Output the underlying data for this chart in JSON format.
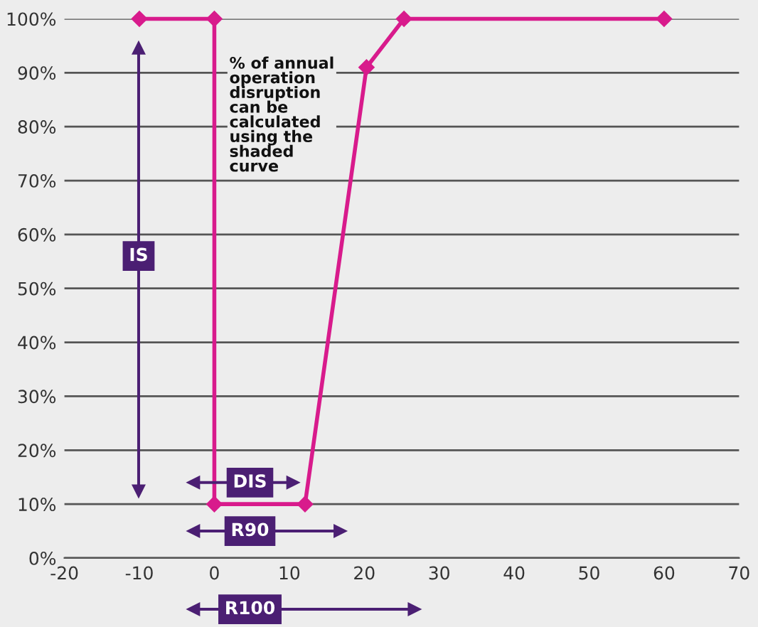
{
  "chart_data": {
    "type": "line",
    "x": [
      -10,
      0,
      0,
      12.1,
      20.3,
      25.3,
      60
    ],
    "series": [
      {
        "color": "#d81b8c",
        "values": [
          100,
          100,
          10,
          10,
          91,
          100,
          100
        ]
      }
    ],
    "xlim": [
      -20,
      70
    ],
    "xticks": [
      -20,
      -10,
      0,
      10,
      20,
      30,
      40,
      50,
      60,
      70
    ],
    "ylim": [
      0,
      100
    ],
    "yticks": [
      {
        "value": 0,
        "label": "0%"
      },
      {
        "value": 10,
        "label": "10%"
      },
      {
        "value": 20,
        "label": "20%"
      },
      {
        "value": 30,
        "label": "30%"
      },
      {
        "value": 40,
        "label": "40%"
      },
      {
        "value": 50,
        "label": "50%"
      },
      {
        "value": 60,
        "label": "60%"
      },
      {
        "value": 70,
        "label": "70%"
      },
      {
        "value": 80,
        "label": "80%"
      },
      {
        "value": 90,
        "label": "90%"
      },
      {
        "value": 100,
        "label": "100%"
      }
    ],
    "grid": "y",
    "marker": "diamond",
    "line_style": "solid",
    "annotations": [
      "IS",
      "DIS",
      "R90",
      "R100",
      "% of annual\noperation\ndisruption\ncan be\ncalculated\nusing the\nshaded\ncurve"
    ]
  }
}
